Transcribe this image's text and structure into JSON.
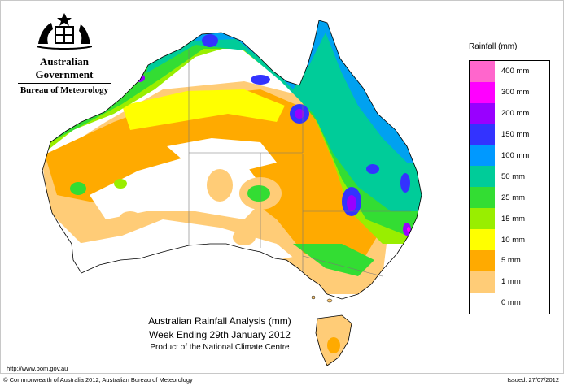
{
  "header": {
    "government_name": "Australian Government",
    "agency_name": "Bureau of Meteorology",
    "crest_icon": "commonwealth-coat-of-arms-icon"
  },
  "titles": {
    "line1": "Australian Rainfall Analysis (mm)",
    "line2": "Week Ending 29th January 2012",
    "line3": "Product of the National Climate Centre"
  },
  "legend": {
    "title": "Rainfall (mm)",
    "items": [
      {
        "label": "400 mm",
        "color": "#ff66cc"
      },
      {
        "label": "300 mm",
        "color": "#ff00ff"
      },
      {
        "label": "200 mm",
        "color": "#9900ff"
      },
      {
        "label": "150 mm",
        "color": "#3333ff"
      },
      {
        "label": "100 mm",
        "color": "#0099ff"
      },
      {
        "label": "50 mm",
        "color": "#00cc99"
      },
      {
        "label": "25 mm",
        "color": "#33dd33"
      },
      {
        "label": "15 mm",
        "color": "#99ee00"
      },
      {
        "label": "10 mm",
        "color": "#ffff00"
      },
      {
        "label": "5 mm",
        "color": "#ffaa00"
      },
      {
        "label": "1 mm",
        "color": "#ffcc77"
      },
      {
        "label": "0 mm",
        "color": "#ffffff"
      }
    ]
  },
  "footer": {
    "url": "http://www.bom.gov.au",
    "copyright": "© Commonwealth of Australia 2012, Australian Bureau of Meteorology",
    "issued": "Issued: 27/07/2012"
  }
}
